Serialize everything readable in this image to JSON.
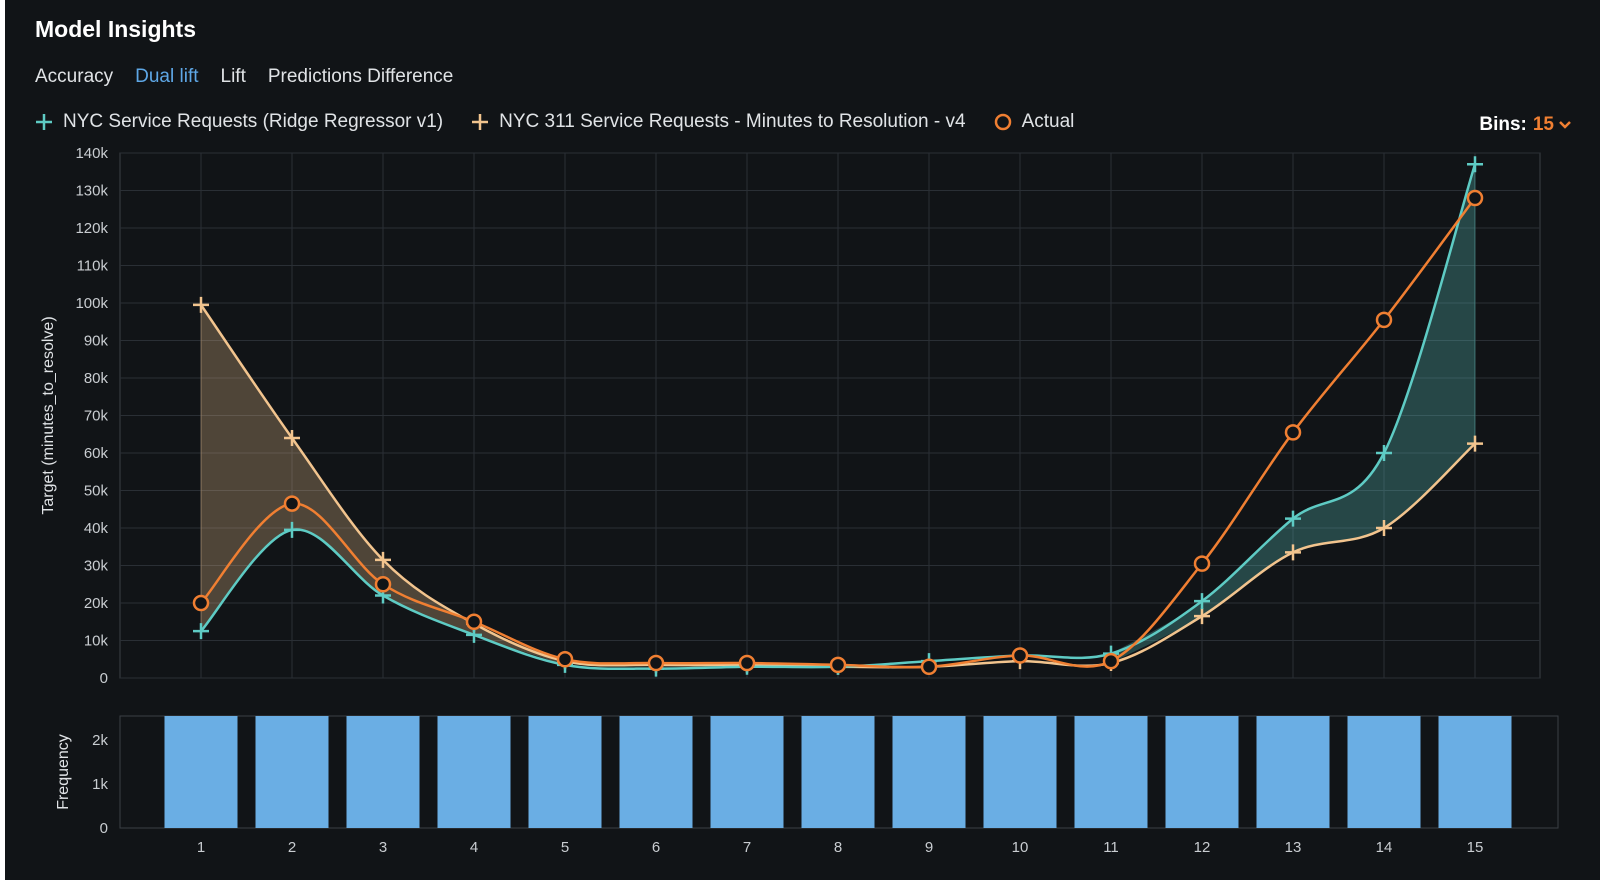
{
  "panel": {
    "title": "Model Insights",
    "tabs": [
      {
        "label": "Accuracy",
        "active": false
      },
      {
        "label": "Dual lift",
        "active": true
      },
      {
        "label": "Lift",
        "active": false
      },
      {
        "label": "Predictions Difference",
        "active": false
      }
    ],
    "bins": {
      "label": "Bins:",
      "value": "15"
    }
  },
  "colors": {
    "background": "#111417",
    "model_a": "#5ecbc4",
    "model_b": "#f2c48e",
    "actual": "#f07f32",
    "frequency_bar": "#6aaee4",
    "active_tab": "#5ea7e6"
  },
  "chart_data": [
    {
      "type": "line",
      "ylabel": "Target (minutes_to_resolve)",
      "x": [
        1,
        2,
        3,
        4,
        5,
        6,
        7,
        8,
        9,
        10,
        11,
        12,
        13,
        14,
        15
      ],
      "ylim": [
        0,
        140000
      ],
      "y_ticks": [
        "0",
        "10k",
        "20k",
        "30k",
        "40k",
        "50k",
        "60k",
        "70k",
        "80k",
        "90k",
        "100k",
        "110k",
        "120k",
        "130k",
        "140k"
      ],
      "grid": true,
      "legend_position": "top-left",
      "series": [
        {
          "name": "NYC Service Requests (Ridge Regressor v1)",
          "marker": "plus",
          "color": "#5ecbc4",
          "values": [
            12500,
            39500,
            22000,
            11500,
            3500,
            2500,
            3000,
            3000,
            4500,
            6000,
            6500,
            20500,
            42500,
            60000,
            137000
          ]
        },
        {
          "name": "NYC 311 Service Requests - Minutes to Resolution - v4",
          "marker": "plus",
          "color": "#f2c48e",
          "values": [
            99500,
            64000,
            31500,
            14500,
            4500,
            3500,
            3500,
            3000,
            3000,
            4500,
            4000,
            16500,
            33500,
            40000,
            62500
          ]
        },
        {
          "name": "Actual",
          "marker": "circle",
          "color": "#f07f32",
          "values": [
            20000,
            46500,
            25000,
            15000,
            5000,
            4000,
            4000,
            3500,
            3000,
            6000,
            4500,
            30500,
            65500,
            95500,
            128000
          ]
        }
      ]
    },
    {
      "type": "bar",
      "ylabel": "Frequency",
      "categories": [
        "1",
        "2",
        "3",
        "4",
        "5",
        "6",
        "7",
        "8",
        "9",
        "10",
        "11",
        "12",
        "13",
        "14",
        "15"
      ],
      "values": [
        2550,
        2550,
        2550,
        2550,
        2550,
        2550,
        2550,
        2550,
        2550,
        2550,
        2550,
        2550,
        2550,
        2550,
        2550
      ],
      "ylim": [
        0,
        2550
      ],
      "y_ticks": [
        "0",
        "1k",
        "2k"
      ],
      "color": "#6aaee4"
    }
  ]
}
